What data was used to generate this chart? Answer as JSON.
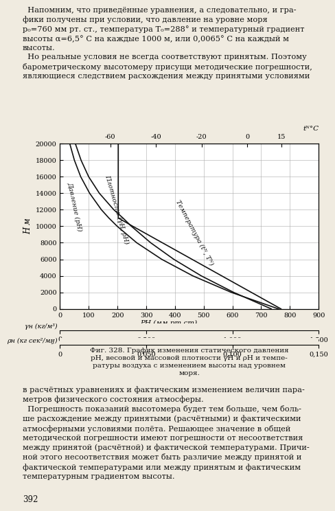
{
  "fig_caption": "Фиг. 328. График изменения статического давления\npН, весовой и массовой плотности γН и ρН и темпе-\nратуры воздуха с изменением высоты над уровнем\nморя.",
  "page_num": "392",
  "xlabel_main": "PН (мм рт.ст)",
  "ylabel_main": "H м",
  "top_axis_ticks": [
    -60,
    -40,
    -20,
    0,
    15
  ],
  "xaxis_ticks": [
    0,
    100,
    200,
    300,
    400,
    500,
    600,
    700,
    800,
    900
  ],
  "yaxis_ticks": [
    0,
    2000,
    4000,
    6000,
    8000,
    10000,
    12000,
    14000,
    16000,
    18000,
    20000
  ],
  "gamma_ticks_label": "γн (кг/м³)",
  "rho_ticks_label": "ρн (кг сек²/мӈ)",
  "curve_pressure_label": "Давление (pН)",
  "curve_density_label": "Плотность (γН, ρН)",
  "curve_temp_label": "Температура (tᴺ, Tᴺ)",
  "H_vals": [
    0,
    2000,
    4000,
    6000,
    8000,
    10000,
    11000,
    12000,
    14000,
    16000,
    18000,
    20000
  ],
  "P_vals": [
    760,
    596,
    462,
    354,
    267,
    199,
    170,
    144,
    103,
    72,
    50,
    34
  ],
  "gamma_vals": [
    1.225,
    1.007,
    0.819,
    0.66,
    0.526,
    0.414,
    0.365,
    0.312,
    0.228,
    0.166,
    0.122,
    0.089
  ],
  "T_vals": [
    288,
    275,
    262,
    249,
    236,
    223,
    216.65,
    216.65,
    216.65,
    216.65,
    216.65,
    216.65
  ],
  "background_color": "#f0ebe0",
  "text_color": "#111111",
  "curve_color": "#111111",
  "grid_color": "#aaaaaa",
  "chart_bg": "#ffffff",
  "figsize": [
    4.74,
    7.52
  ],
  "dpi": 100
}
